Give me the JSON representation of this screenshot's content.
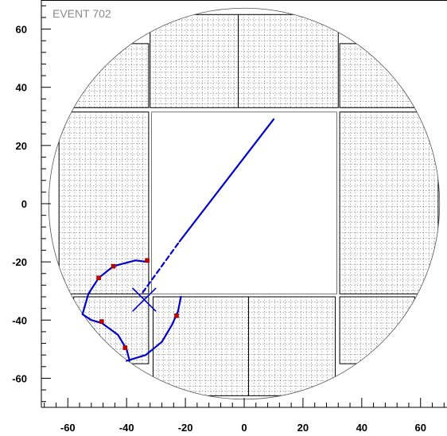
{
  "title": "EVENT 702",
  "colors": {
    "track": "#0000cc",
    "hit": "#cc0000",
    "detector": "#000000",
    "grid": "#333333",
    "title": "#8a8a8a"
  },
  "chart_data": {
    "type": "scatter",
    "title": "EVENT 702",
    "xlabel": "",
    "ylabel": "",
    "xlim": [
      -69,
      69
    ],
    "ylim": [
      -70,
      70
    ],
    "x_ticks": [
      -60,
      -40,
      -20,
      0,
      20,
      40,
      60
    ],
    "y_ticks": [
      60,
      40,
      20,
      0,
      -20,
      -40,
      -60
    ],
    "detector": {
      "circle_radius": 66.5,
      "beam_hole": {
        "x": [
          -31.5,
          31.5
        ],
        "y": [
          -31,
          31.5
        ]
      },
      "module_columns": [
        {
          "x": [
            -63,
            -32.5
          ],
          "y": [
            -31,
            31.5
          ]
        },
        {
          "x": [
            32.5,
            66
          ],
          "y": [
            -31,
            31.5
          ]
        },
        {
          "x": [
            -32,
            -2
          ],
          "y": [
            33,
            65
          ]
        },
        {
          "x": [
            -2,
            32
          ],
          "y": [
            33,
            65
          ]
        },
        {
          "x": [
            -31,
            1.5
          ],
          "y": [
            -66,
            -32
          ]
        },
        {
          "x": [
            1.5,
            31
          ],
          "y": [
            -66,
            -32
          ]
        },
        {
          "x": [
            -58,
            -32.5
          ],
          "y": [
            33,
            55
          ]
        },
        {
          "x": [
            32.5,
            58
          ],
          "y": [
            33,
            55
          ]
        },
        {
          "x": [
            -58,
            -32.5
          ],
          "y": [
            -55,
            -32
          ]
        },
        {
          "x": [
            32.5,
            58
          ],
          "y": [
            -55,
            -32
          ]
        }
      ]
    },
    "tracks": [
      {
        "name": "",
        "style": "solid",
        "points": [
          [
            -22,
            -13
          ],
          [
            10,
            29
          ]
        ]
      },
      {
        "name": "",
        "style": "dashed",
        "points": [
          [
            -34.5,
            -30.5
          ],
          [
            -22,
            -13
          ]
        ]
      },
      {
        "name": "",
        "style": "solid",
        "points": [
          [
            -33,
            -20
          ],
          [
            -37,
            -19.5
          ],
          [
            -44.5,
            -21.5
          ],
          [
            -49.5,
            -25.5
          ],
          [
            -53,
            -31
          ],
          [
            -55,
            -38
          ],
          [
            -52,
            -40
          ],
          [
            -48.5,
            -41
          ],
          [
            -43,
            -45
          ],
          [
            -40,
            -50
          ],
          [
            -39,
            -54
          ]
        ]
      },
      {
        "name": "",
        "style": "solid",
        "points": [
          [
            -40,
            -54
          ],
          [
            -33.5,
            -52
          ],
          [
            -28,
            -47.5
          ],
          [
            -24.5,
            -41.5
          ],
          [
            -22.5,
            -37
          ],
          [
            -21.5,
            -32
          ]
        ]
      }
    ],
    "vertex": {
      "x": [
        -35.5,
        -32.5
      ],
      "y": [
        -33,
        -33
      ]
    },
    "hits": [
      [
        -33,
        -19.5
      ],
      [
        -44.5,
        -21.5
      ],
      [
        -49.5,
        -25.5
      ],
      [
        -48.5,
        -40.5
      ],
      [
        -40.5,
        -49.5
      ],
      [
        -23,
        -38.5
      ]
    ]
  }
}
